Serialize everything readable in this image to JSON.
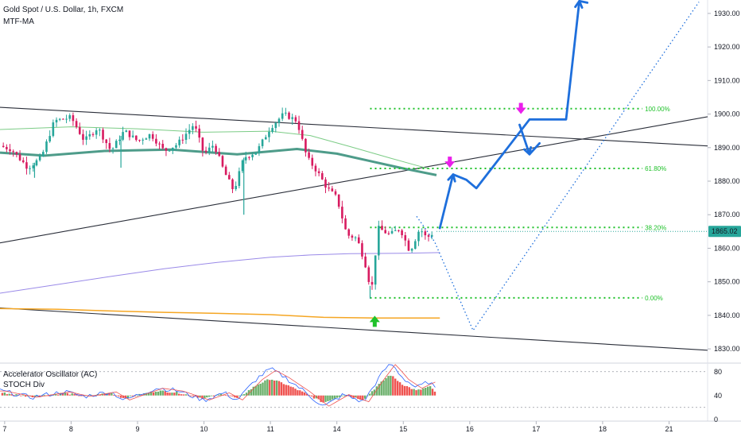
{
  "chart_data": [
    {
      "type": "candlestick",
      "title": "Gold Spot / U.S. Dollar, 1h, FXCM",
      "indicator_label": "MTF-MA",
      "x_tick_labels": [
        "7",
        "8",
        "9",
        "10",
        "11",
        "14",
        "15",
        "16",
        "17",
        "18",
        "21"
      ],
      "x_tick_values": [
        0,
        1,
        2,
        3,
        4,
        5,
        6,
        7,
        8,
        9,
        10
      ],
      "y_tick_labels": [
        "1830.00",
        "1840.00",
        "1850.00",
        "1860.00",
        "1870.00",
        "1880.00",
        "1890.00",
        "1900.00",
        "1910.00",
        "1920.00",
        "1930.00"
      ],
      "ylim": [
        1826,
        1934
      ],
      "xlim": [
        -0.07,
        10.58
      ],
      "current_price": 1865.02,
      "current_price_label": "1865.02",
      "price_path": [
        [
          -0.07,
          1890.5
        ],
        [
          0.1,
          1889.5
        ],
        [
          0.35,
          1884
        ],
        [
          0.55,
          1887
        ],
        [
          0.75,
          1898
        ],
        [
          1.0,
          1899
        ],
        [
          1.2,
          1892
        ],
        [
          1.4,
          1896
        ],
        [
          1.6,
          1889
        ],
        [
          1.8,
          1895
        ],
        [
          2.0,
          1892
        ],
        [
          2.2,
          1894
        ],
        [
          2.4,
          1889
        ],
        [
          2.6,
          1891
        ],
        [
          2.85,
          1897
        ],
        [
          3.0,
          1888
        ],
        [
          3.15,
          1891
        ],
        [
          3.3,
          1883
        ],
        [
          3.45,
          1877
        ],
        [
          3.6,
          1887
        ],
        [
          3.8,
          1889
        ],
        [
          4.0,
          1896
        ],
        [
          4.2,
          1900
        ],
        [
          4.4,
          1898
        ],
        [
          4.55,
          1887
        ],
        [
          4.7,
          1883
        ],
        [
          4.85,
          1878
        ],
        [
          5.0,
          1875
        ],
        [
          5.15,
          1864
        ],
        [
          5.3,
          1863
        ],
        [
          5.42,
          1856
        ],
        [
          5.52,
          1847
        ],
        [
          5.62,
          1866
        ],
        [
          5.8,
          1864
        ],
        [
          5.95,
          1866
        ],
        [
          6.1,
          1859
        ],
        [
          6.25,
          1866
        ],
        [
          6.35,
          1863
        ],
        [
          6.47,
          1865
        ]
      ],
      "spike_lows": [
        [
          0.45,
          1881
        ],
        [
          1.75,
          1884
        ],
        [
          3.6,
          1870
        ],
        [
          5.5,
          1845
        ]
      ],
      "ma_series": [
        {
          "color": "#4e9c8a",
          "width": 3,
          "points": [
            [
              -0.07,
              1888.5
            ],
            [
              0.6,
              1887.6
            ],
            [
              1.5,
              1889
            ],
            [
              2.5,
              1889.4
            ],
            [
              3.5,
              1888
            ],
            [
              4.4,
              1889.6
            ],
            [
              5.0,
              1888.2
            ],
            [
              5.5,
              1886
            ],
            [
              6.0,
              1883.8
            ],
            [
              6.5,
              1881.8
            ]
          ]
        },
        {
          "color": "#7ccc86",
          "width": 1,
          "points": [
            [
              -0.07,
              1895.4
            ],
            [
              1.0,
              1896.2
            ],
            [
              2.0,
              1895.6
            ],
            [
              3.0,
              1894.6
            ],
            [
              4.0,
              1894.9
            ],
            [
              4.6,
              1893.6
            ],
            [
              5.2,
              1890.3
            ],
            [
              5.8,
              1886.9
            ],
            [
              6.4,
              1883.6
            ]
          ]
        },
        {
          "color": "#9a8ae8",
          "width": 1,
          "points": [
            [
              -0.07,
              1846.6
            ],
            [
              0.8,
              1849.2
            ],
            [
              1.6,
              1851.6
            ],
            [
              2.4,
              1853.9
            ],
            [
              3.2,
              1855.8
            ],
            [
              4.0,
              1857.3
            ],
            [
              4.6,
              1858
            ],
            [
              5.2,
              1858.4
            ],
            [
              6.0,
              1858.5
            ],
            [
              6.55,
              1858.7
            ]
          ]
        },
        {
          "color": "#f5a623",
          "width": 1.5,
          "points": [
            [
              -0.07,
              1842
            ],
            [
              0.8,
              1841.8
            ],
            [
              1.6,
              1841.3
            ],
            [
              2.4,
              1840.9
            ],
            [
              3.2,
              1840.6
            ],
            [
              4.0,
              1840.2
            ],
            [
              4.8,
              1839.4
            ],
            [
              5.6,
              1839.2
            ],
            [
              6.55,
              1839.2
            ]
          ]
        }
      ],
      "trend_lines": [
        {
          "color": "#2a2e39",
          "from": [
            -0.07,
            1902
          ],
          "to": [
            10.58,
            1890.5
          ]
        },
        {
          "color": "#2a2e39",
          "from": [
            -0.07,
            1861.6
          ],
          "to": [
            10.58,
            1899.2
          ]
        },
        {
          "color": "#2a2e39",
          "from": [
            -0.07,
            1842.2
          ],
          "to": [
            10.58,
            1829.6
          ]
        }
      ],
      "fib_levels": [
        {
          "label": "100.00%",
          "value": 1901.6
        },
        {
          "label": "61.80%",
          "value": 1883.8
        },
        {
          "label": "38.20%",
          "value": 1866.2
        },
        {
          "label": "0.00%",
          "value": 1845.2
        }
      ],
      "fib_x_range": [
        5.5,
        9.6
      ],
      "fib_color": "#1fc12a",
      "projection_solid": {
        "color": "#1e6fdc",
        "points": [
          [
            6.55,
            1866
          ],
          [
            6.75,
            1882
          ],
          [
            6.95,
            1880.4
          ],
          [
            7.1,
            1877.9
          ],
          [
            7.9,
            1898.4
          ],
          [
            8.45,
            1898.4
          ],
          [
            8.65,
            1933.7
          ],
          [
            8.77,
            1933.2
          ]
        ]
      },
      "projection_branch": {
        "color": "#1e6fdc",
        "points": [
          [
            7.75,
            1896.8
          ],
          [
            7.9,
            1888
          ],
          [
            8.05,
            1891.3
          ]
        ]
      },
      "projection_dotted": {
        "color": "#1e6fdc",
        "points": [
          [
            6.2,
            1869.5
          ],
          [
            6.47,
            1862
          ],
          [
            7.05,
            1835.5
          ],
          [
            10.45,
            1933.4
          ]
        ]
      },
      "down_arrows": [
        {
          "x": 6.7,
          "y": 1884,
          "color": "#ea1fea"
        },
        {
          "x": 7.77,
          "y": 1900,
          "color": "#ea1fea"
        }
      ],
      "up_arrows": [
        {
          "x": 5.57,
          "y": 1838,
          "color": "#1fc12a"
        }
      ]
    },
    {
      "type": "bar",
      "title": "Accelerator Oscillator (AC)",
      "indicator_label": "STOCH Div",
      "y_tick_labels": [
        "0",
        "40",
        "80"
      ],
      "ylim": [
        -3,
        93
      ],
      "oscillator_path": [
        [
          -0.07,
          45
        ],
        [
          0.4,
          38
        ],
        [
          0.9,
          44
        ],
        [
          1.2,
          39
        ],
        [
          1.6,
          44
        ],
        [
          1.8,
          35
        ],
        [
          2.1,
          43
        ],
        [
          2.3,
          48
        ],
        [
          2.6,
          45
        ],
        [
          3.0,
          35
        ],
        [
          3.3,
          43
        ],
        [
          3.5,
          35
        ],
        [
          3.8,
          58
        ],
        [
          4.0,
          68
        ],
        [
          4.2,
          60
        ],
        [
          4.5,
          45
        ],
        [
          4.8,
          28
        ],
        [
          5.1,
          41
        ],
        [
          5.4,
          33
        ],
        [
          5.6,
          55
        ],
        [
          5.8,
          75
        ],
        [
          6.0,
          58
        ],
        [
          6.2,
          48
        ],
        [
          6.4,
          55
        ],
        [
          6.5,
          44
        ]
      ],
      "bar_colors": {
        "up": "#6aaf6a",
        "down": "#ef5350"
      }
    }
  ]
}
